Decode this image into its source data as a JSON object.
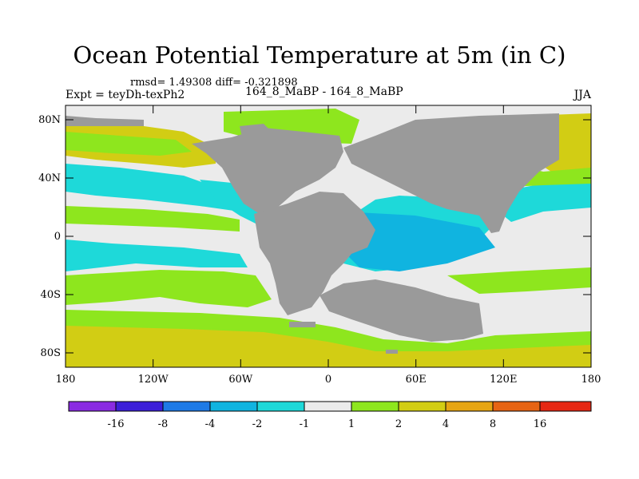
{
  "title": "Ocean Potential Temperature at 5m (in C)",
  "stats": "rmsd= 1.49308 diff= -0.321898",
  "experiment": "Expt = teyDh-texPh2",
  "period": "164_8_MaBP - 164_8_MaBP",
  "season": "JJA",
  "lat_labels": [
    "80N",
    "40N",
    "0",
    "40S",
    "80S"
  ],
  "lon_labels": [
    "180",
    "120W",
    "60W",
    "0",
    "60E",
    "120E",
    "180"
  ],
  "colorbar": {
    "tick_labels": [
      "-16",
      "-8",
      "-4",
      "-2",
      "-1",
      "1",
      "2",
      "4",
      "8",
      "16"
    ],
    "colors": [
      "#8a2be2",
      "#3c1fd9",
      "#1e7ae6",
      "#10b4e0",
      "#1ed9d9",
      "#ebebeb",
      "#8ee61e",
      "#d2cd14",
      "#e6a514",
      "#e66414",
      "#e62814"
    ]
  },
  "map_colors": {
    "land": "#9a9a9a",
    "neutral": "#ebebeb",
    "warm_light": "#8ee61e",
    "warm_mid": "#d2cd14",
    "cool_light": "#1ed9d9",
    "cool_mid": "#10b4e0"
  }
}
